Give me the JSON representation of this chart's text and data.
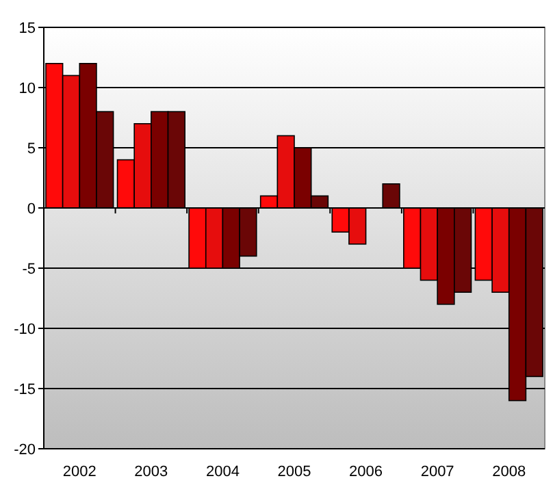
{
  "chart_data": {
    "type": "bar",
    "categories": [
      "2002",
      "2003",
      "2004",
      "2005",
      "2006",
      "2007",
      "2008"
    ],
    "series": [
      {
        "color": "#ff0a0a",
        "values": [
          12,
          4,
          -5,
          1,
          -2,
          -5,
          -6
        ]
      },
      {
        "color": "#e60d0d",
        "values": [
          11,
          7,
          -5,
          6,
          -3,
          -6,
          -7
        ]
      },
      {
        "color": "#7a0000",
        "values": [
          12,
          8,
          -5,
          5,
          0,
          -8,
          -16
        ]
      },
      {
        "color": "#6a0606",
        "values": [
          8,
          8,
          -4,
          1,
          2,
          -7,
          -14
        ]
      }
    ],
    "ylim": [
      -20,
      15
    ],
    "yticks": [
      -20,
      -15,
      -10,
      -5,
      0,
      5,
      10,
      15
    ],
    "grid": "y"
  }
}
